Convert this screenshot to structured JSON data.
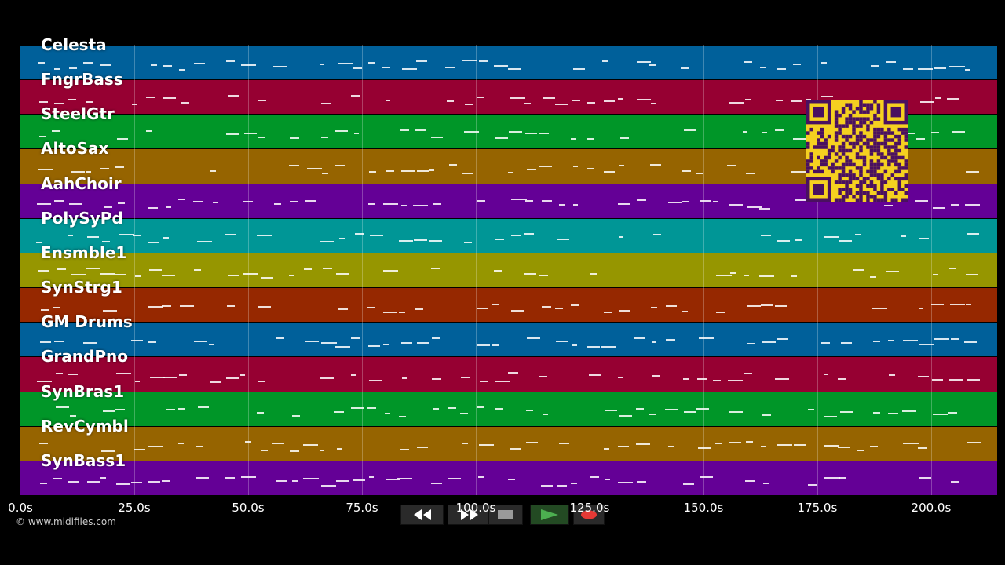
{
  "tracks": [
    {
      "label": "Celesta",
      "color": "#00609a"
    },
    {
      "label": "FngrBass",
      "color": "#960032"
    },
    {
      "label": "SteelGtr",
      "color": "#009628"
    },
    {
      "label": "AltoSax",
      "color": "#966400"
    },
    {
      "label": "AahChoir",
      "color": "#640096"
    },
    {
      "label": "PolySyPd",
      "color": "#009696"
    },
    {
      "label": "Ensmble1",
      "color": "#969600"
    },
    {
      "label": "SynStrg1",
      "color": "#962800"
    },
    {
      "label": "GM Drums",
      "color": "#00609a"
    },
    {
      "label": "GrandPno",
      "color": "#960032"
    },
    {
      "label": "SynBras1",
      "color": "#009628"
    },
    {
      "label": "RevCymbl",
      "color": "#966400"
    },
    {
      "label": "SynBass1",
      "color": "#640096"
    }
  ],
  "time_axis": {
    "ticks": [
      "0.0s",
      "25.0s",
      "50.0s",
      "75.0s",
      "100.0s",
      "125.0s",
      "150.0s",
      "175.0s",
      "200.0s"
    ],
    "max_seconds": 214.5
  },
  "copyright": "© www.midifiles.com",
  "transport": {
    "rewind_icon": "rewind-icon",
    "fast_forward_icon": "fast-forward-icon",
    "stop_icon": "stop-icon",
    "play_icon": "play-icon",
    "record_icon": "record-icon",
    "accent_play": "#4caf50",
    "accent_record": "#e53935"
  },
  "qr_code": {
    "fg": "#4a1060",
    "bg": "#f5d020"
  }
}
